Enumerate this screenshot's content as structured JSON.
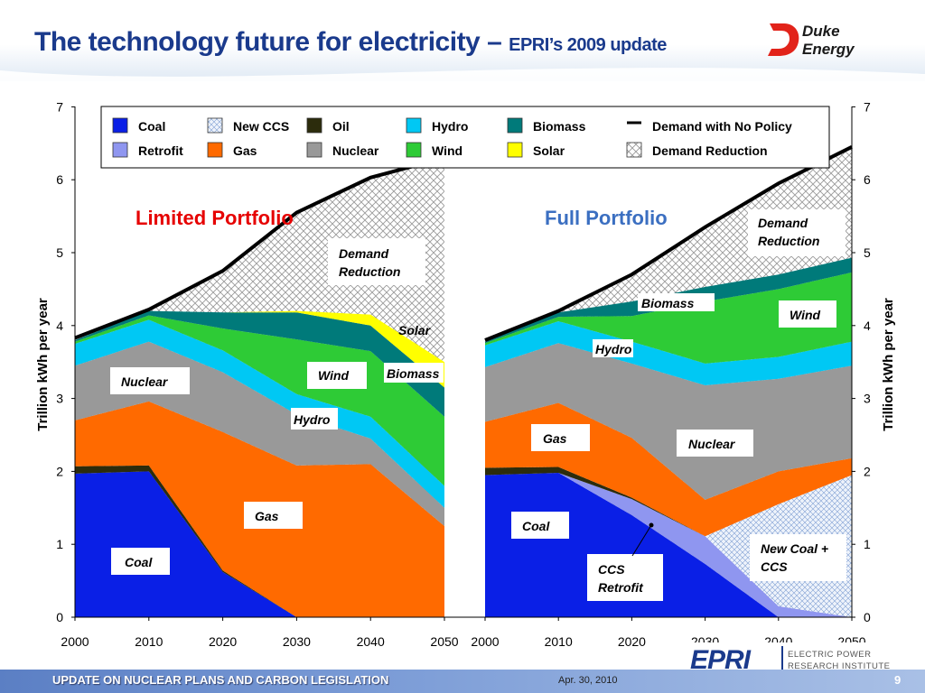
{
  "slide": {
    "title_main": "The technology future for electricity – ",
    "title_sub": "EPRI’s 2009 update",
    "footer_text": "UPDATE ON NUCLEAR PLANS AND CARBON LEGISLATION",
    "footer_date": "Apr. 30, 2010",
    "page_number": "9",
    "logo_duke_line1": "Duke",
    "logo_duke_line2": "Energy",
    "logo_epri_mark": "EPRI",
    "logo_epri_line1": "ELECTRIC POWER",
    "logo_epri_line2": "RESEARCH INSTITUTE"
  },
  "colors": {
    "coal": "#0a1fe6",
    "retrofit": "#8f96f0",
    "new_ccs": "#dfeaf6",
    "gas": "#ff6a00",
    "oil": "#2c2c0c",
    "nuclear": "#999999",
    "hydro": "#00c8f4",
    "wind": "#2ecb36",
    "biomass": "#007a7a",
    "solar": "#ffff00",
    "demand_line": "#000000",
    "title": "#1a3a8c",
    "limited_label": "#e60000",
    "full_label": "#3b6fc1"
  },
  "chart_data": [
    {
      "type": "area",
      "title": "Limited Portfolio",
      "x": [
        2000,
        2010,
        2020,
        2030,
        2040,
        2050
      ],
      "xlim": [
        2000,
        2050
      ],
      "ylim": [
        0,
        7
      ],
      "ylabel": "Trillion kWh per year",
      "stacking": "stacked",
      "series": [
        {
          "name": "Coal",
          "key": "coal",
          "values": [
            1.97,
            2.0,
            0.62,
            0.0,
            0.0,
            0.0
          ]
        },
        {
          "name": "Oil",
          "key": "oil",
          "values": [
            0.1,
            0.08,
            0.02,
            0.0,
            0.0,
            0.0
          ]
        },
        {
          "name": "Gas",
          "key": "gas",
          "values": [
            0.63,
            0.88,
            1.9,
            2.08,
            2.1,
            1.25
          ]
        },
        {
          "name": "Nuclear",
          "key": "nuclear",
          "values": [
            0.75,
            0.82,
            0.82,
            0.7,
            0.35,
            0.25
          ]
        },
        {
          "name": "Hydro",
          "key": "hydro",
          "values": [
            0.3,
            0.3,
            0.3,
            0.28,
            0.3,
            0.3
          ]
        },
        {
          "name": "Wind",
          "key": "wind",
          "values": [
            0.03,
            0.06,
            0.3,
            0.75,
            0.9,
            0.95
          ]
        },
        {
          "name": "Biomass",
          "key": "biomass",
          "values": [
            0.02,
            0.06,
            0.22,
            0.37,
            0.35,
            0.4
          ]
        },
        {
          "name": "Solar",
          "key": "solar",
          "values": [
            0.0,
            0.0,
            0.0,
            0.02,
            0.15,
            0.35
          ]
        }
      ],
      "demand_no_policy": [
        3.83,
        4.22,
        4.75,
        5.55,
        6.03,
        6.3
      ],
      "labels": [
        "Coal",
        "Gas",
        "Nuclear",
        "Hydro",
        "Wind",
        "Biomass",
        "Solar",
        "Demand Reduction"
      ]
    },
    {
      "type": "area",
      "title": "Full Portfolio",
      "x": [
        2000,
        2010,
        2020,
        2030,
        2040,
        2050
      ],
      "xlim": [
        2000,
        2050
      ],
      "ylim": [
        0,
        7
      ],
      "ylabel": "Trillion kWh per year",
      "stacking": "stacked",
      "series": [
        {
          "name": "Coal",
          "key": "coal",
          "values": [
            1.95,
            1.98,
            1.4,
            0.73,
            0.0,
            0.0
          ]
        },
        {
          "name": "Retrofit",
          "key": "retrofit",
          "values": [
            0.0,
            0.0,
            0.22,
            0.38,
            0.15,
            0.0
          ]
        },
        {
          "name": "New CCS",
          "key": "new_ccs",
          "values": [
            0.0,
            0.0,
            0.0,
            0.0,
            1.4,
            1.95
          ]
        },
        {
          "name": "Oil",
          "key": "oil",
          "values": [
            0.1,
            0.08,
            0.02,
            0.0,
            0.0,
            0.0
          ]
        },
        {
          "name": "Gas",
          "key": "gas",
          "values": [
            0.63,
            0.88,
            0.82,
            0.5,
            0.45,
            0.23
          ]
        },
        {
          "name": "Nuclear",
          "key": "nuclear",
          "values": [
            0.75,
            0.82,
            1.02,
            1.57,
            1.27,
            1.27
          ]
        },
        {
          "name": "Hydro",
          "key": "hydro",
          "values": [
            0.3,
            0.3,
            0.3,
            0.3,
            0.3,
            0.33
          ]
        },
        {
          "name": "Wind",
          "key": "wind",
          "values": [
            0.03,
            0.06,
            0.35,
            0.85,
            0.93,
            0.95
          ]
        },
        {
          "name": "Biomass",
          "key": "biomass",
          "values": [
            0.02,
            0.06,
            0.2,
            0.2,
            0.2,
            0.2
          ]
        }
      ],
      "demand_no_policy": [
        3.8,
        4.2,
        4.7,
        5.35,
        5.95,
        6.45
      ],
      "labels": [
        "Coal",
        "CCS Retrofit",
        "New Coal + CCS",
        "Gas",
        "Nuclear",
        "Hydro",
        "Wind",
        "Biomass",
        "Demand Reduction"
      ]
    }
  ],
  "legend": [
    {
      "label": "Coal",
      "key": "coal"
    },
    {
      "label": "New CCS",
      "key": "new_ccs"
    },
    {
      "label": "Oil",
      "key": "oil"
    },
    {
      "label": "Hydro",
      "key": "hydro"
    },
    {
      "label": "Biomass",
      "key": "biomass"
    },
    {
      "label": "Demand with No Policy",
      "key": "demand_line"
    },
    {
      "label": "Retrofit",
      "key": "retrofit"
    },
    {
      "label": "Gas",
      "key": "gas"
    },
    {
      "label": "Nuclear",
      "key": "nuclear"
    },
    {
      "label": "Wind",
      "key": "wind"
    },
    {
      "label": "Solar",
      "key": "solar"
    },
    {
      "label": "Demand Reduction",
      "key": "demand_reduction"
    }
  ],
  "axes": {
    "y_ticks": [
      "0",
      "1",
      "2",
      "3",
      "4",
      "5",
      "6",
      "7"
    ],
    "x_ticks_left": [
      "2000",
      "2010",
      "2020",
      "2030",
      "2040",
      "2050"
    ],
    "x_ticks_right": [
      "2000",
      "2010",
      "2020",
      "2030",
      "2040",
      "2050"
    ],
    "ylabel": "Trillion kWh per year"
  }
}
